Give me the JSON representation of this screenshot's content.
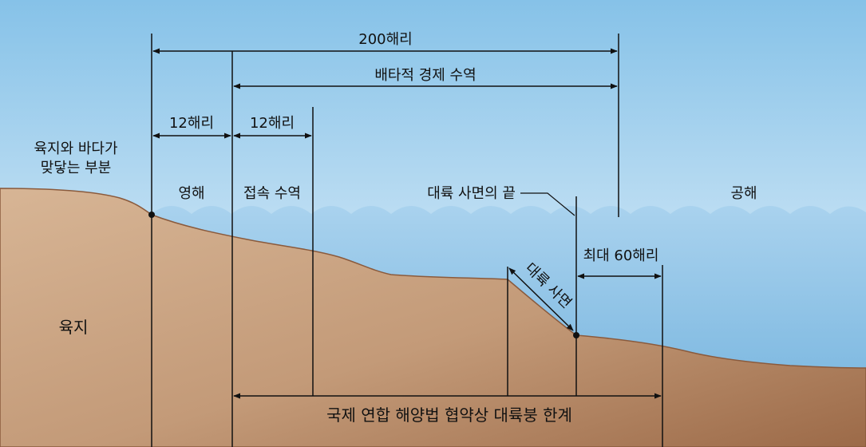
{
  "labels": {
    "zone_200": "200해리",
    "eez": "배타적 경제 수역",
    "territorial_12": "12해리",
    "contiguous_12": "12해리",
    "coastline": [
      "육지와 바다가",
      "맞닿는 부분"
    ],
    "territorial_sea": "영해",
    "contiguous_zone": "접속 수역",
    "shelf_edge": "대륙 사면의 끝",
    "high_seas": "공해",
    "max_60": "최대 60해리",
    "slope": "대륙 사면",
    "land": "육지",
    "un_limit": "국제 연합 해양법 협약상 대륙붕 한계"
  },
  "colors": {
    "sky_top": "#86c2e8",
    "sky_bottom": "#f4f9fd",
    "sea_top": "#a9d2ee",
    "sea_bottom": "#6fb0dc",
    "land_light": "#d7b595",
    "land_dark": "#9c6a48",
    "land_edge": "#8a5a3c",
    "line": "#111111"
  }
}
